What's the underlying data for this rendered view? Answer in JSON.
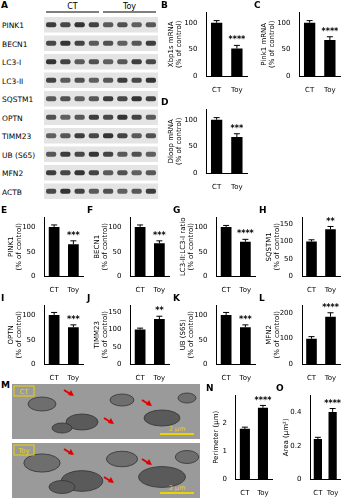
{
  "blot": {
    "panel": "A",
    "groups": [
      "CT",
      "Toy"
    ],
    "rows": [
      "PINK1",
      "BECN1",
      "LC3-I",
      "LC3-II",
      "SQSTM1",
      "OPTN",
      "TIMM23",
      "UB (S65)",
      "MFN2",
      "ACTB"
    ]
  },
  "micrographs": {
    "panel": "M",
    "images": [
      {
        "label": "CT",
        "scale_bar": "2 µm"
      },
      {
        "label": "Toy",
        "scale_bar": "2 µm"
      }
    ]
  },
  "chart_data": [
    {
      "panel": "B",
      "type": "bar",
      "y_label": [
        "Xbp1s mRNA",
        "(% of control)"
      ],
      "categories": [
        "CT",
        "Toy"
      ],
      "values": [
        100,
        52
      ],
      "errors": [
        4,
        6
      ],
      "color": "#000000",
      "ylim": [
        0,
        120
      ],
      "yticks": [
        0,
        50,
        100
      ],
      "grid": false,
      "annotations": [
        {
          "category": "Toy",
          "text": "****"
        }
      ]
    },
    {
      "panel": "C",
      "type": "bar",
      "y_label": [
        "Pink1 mRNA",
        "(% of control)"
      ],
      "categories": [
        "CT",
        "Toy"
      ],
      "values": [
        100,
        68
      ],
      "errors": [
        4,
        6
      ],
      "color": "#000000",
      "ylim": [
        0,
        120
      ],
      "yticks": [
        0,
        50,
        100
      ],
      "grid": false,
      "annotations": [
        {
          "category": "Toy",
          "text": "****"
        }
      ]
    },
    {
      "panel": "D",
      "type": "bar",
      "y_label": [
        "Dloop mRNA",
        "(% of control)"
      ],
      "categories": [
        "CT",
        "Toy"
      ],
      "values": [
        100,
        68
      ],
      "errors": [
        4,
        6
      ],
      "color": "#000000",
      "ylim": [
        0,
        120
      ],
      "yticks": [
        0,
        50,
        100
      ],
      "grid": false,
      "annotations": [
        {
          "category": "Toy",
          "text": "***"
        }
      ]
    },
    {
      "panel": "E",
      "type": "bar",
      "y_label": [
        "PINK1",
        "(% of control)"
      ],
      "categories": [
        "CT",
        "Toy"
      ],
      "values": [
        100,
        65
      ],
      "errors": [
        4,
        7
      ],
      "color": "#000000",
      "ylim": [
        0,
        120
      ],
      "yticks": [
        0,
        50,
        100
      ],
      "grid": false,
      "annotations": [
        {
          "category": "Toy",
          "text": "***"
        }
      ]
    },
    {
      "panel": "F",
      "type": "bar",
      "y_label": [
        "BECN1",
        "(% of control)"
      ],
      "categories": [
        "CT",
        "Toy"
      ],
      "values": [
        100,
        67
      ],
      "errors": [
        4,
        5
      ],
      "color": "#000000",
      "ylim": [
        0,
        120
      ],
      "yticks": [
        0,
        50,
        100
      ],
      "grid": false,
      "annotations": [
        {
          "category": "Toy",
          "text": "***"
        }
      ]
    },
    {
      "panel": "G",
      "type": "bar",
      "y_label": [
        "LC3-II:LC3-I ratio",
        "(% of control)"
      ],
      "categories": [
        "CT",
        "Toy"
      ],
      "values": [
        100,
        70
      ],
      "errors": [
        3,
        5
      ],
      "color": "#000000",
      "ylim": [
        0,
        120
      ],
      "yticks": [
        0,
        50,
        100
      ],
      "grid": false,
      "annotations": [
        {
          "category": "Toy",
          "text": "****"
        }
      ]
    },
    {
      "panel": "H",
      "type": "bar",
      "y_label": [
        "SQSTM1",
        "(% of control)"
      ],
      "categories": [
        "CT",
        "Toy"
      ],
      "values": [
        100,
        135
      ],
      "errors": [
        5,
        8
      ],
      "color": "#000000",
      "ylim": [
        0,
        170
      ],
      "yticks": [
        0,
        50,
        100,
        150
      ],
      "grid": false,
      "annotations": [
        {
          "category": "Toy",
          "text": "**"
        }
      ]
    },
    {
      "panel": "I",
      "type": "bar",
      "y_label": [
        "OPTN",
        "(% of control)"
      ],
      "categories": [
        "CT",
        "Toy"
      ],
      "values": [
        100,
        75
      ],
      "errors": [
        5,
        5
      ],
      "color": "#000000",
      "ylim": [
        0,
        120
      ],
      "yticks": [
        0,
        50,
        100
      ],
      "grid": false,
      "annotations": [
        {
          "category": "Toy",
          "text": "***"
        }
      ]
    },
    {
      "panel": "J",
      "type": "bar",
      "y_label": [
        "TIMM23",
        "(% of control)"
      ],
      "categories": [
        "CT",
        "Toy"
      ],
      "values": [
        100,
        130
      ],
      "errors": [
        4,
        8
      ],
      "color": "#000000",
      "ylim": [
        0,
        170
      ],
      "yticks": [
        0,
        50,
        100,
        150
      ],
      "grid": false,
      "annotations": [
        {
          "category": "Toy",
          "text": "**"
        }
      ]
    },
    {
      "panel": "K",
      "type": "bar",
      "y_label": [
        "UB (S65)",
        "(% of control)"
      ],
      "categories": [
        "CT",
        "Toy"
      ],
      "values": [
        100,
        75
      ],
      "errors": [
        5,
        5
      ],
      "color": "#000000",
      "ylim": [
        0,
        120
      ],
      "yticks": [
        0,
        50,
        100
      ],
      "grid": false,
      "annotations": [
        {
          "category": "Toy",
          "text": "***"
        }
      ]
    },
    {
      "panel": "L",
      "type": "bar",
      "y_label": [
        "MFN2",
        "(% of control)"
      ],
      "categories": [
        "CT",
        "Toy"
      ],
      "values": [
        100,
        185
      ],
      "errors": [
        8,
        15
      ],
      "color": "#000000",
      "ylim": [
        0,
        230
      ],
      "yticks": [
        0,
        100,
        200
      ],
      "grid": false,
      "annotations": [
        {
          "category": "Toy",
          "text": "****"
        }
      ]
    },
    {
      "panel": "N",
      "type": "bar",
      "y_label": "Perimeter (µm)",
      "categories": [
        "CT",
        "Toy"
      ],
      "values": [
        1.8,
        2.55
      ],
      "errors": [
        0.06,
        0.08
      ],
      "color": "#000000",
      "ylim": [
        0,
        3
      ],
      "yticks": [
        0,
        1,
        2
      ],
      "grid": false,
      "annotations": [
        {
          "category": "Toy",
          "text": "****"
        }
      ]
    },
    {
      "panel": "O",
      "type": "bar",
      "y_label": "Area (µm²)",
      "categories": [
        "CT",
        "Toy"
      ],
      "values": [
        0.24,
        0.4
      ],
      "errors": [
        0.01,
        0.02
      ],
      "color": "#000000",
      "ylim": [
        0,
        0.5
      ],
      "yticks": [
        0,
        0.2,
        0.4
      ],
      "grid": false,
      "annotations": [
        {
          "category": "Toy",
          "text": "****"
        }
      ]
    }
  ]
}
